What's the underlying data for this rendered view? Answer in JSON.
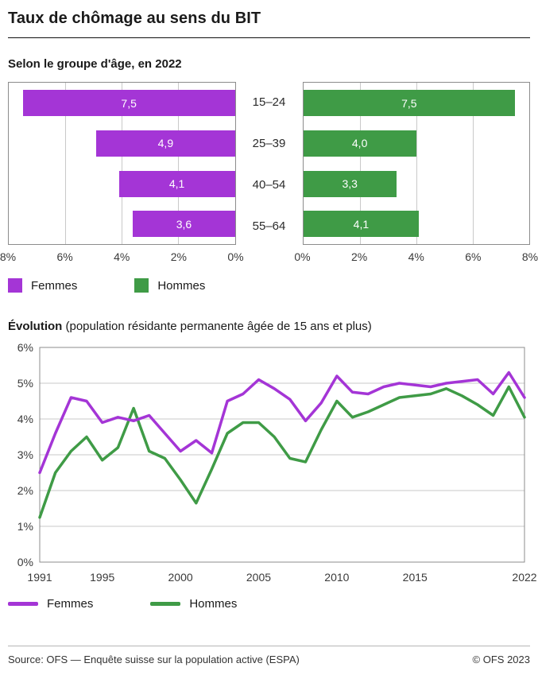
{
  "title": "Taux de chômage au sens du BIT",
  "bar_section": {
    "subtitle": "Selon le groupe d'âge, en 2022"
  },
  "evolution_section": {
    "title": "Évolution",
    "subtitle": "(population résidante permanente âgée de 15 ans et plus)"
  },
  "legend": {
    "femmes": "Femmes",
    "hommes": "Hommes"
  },
  "colors": {
    "femmes": "#a435d6",
    "hommes": "#3f9b46",
    "grid": "#c9c9c9",
    "frame": "#8c8c8c"
  },
  "footer": {
    "source": "Source: OFS — Enquête suisse sur la population active (ESPA)",
    "copyright": "© OFS 2023"
  },
  "chart_data": [
    {
      "type": "bar",
      "orientation": "horizontal",
      "title": "Selon le groupe d'âge, en 2022",
      "categories": [
        "15–24",
        "25–39",
        "40–54",
        "55–64"
      ],
      "xlim": [
        0,
        8
      ],
      "grid": true,
      "series": [
        {
          "name": "Femmes",
          "values": [
            7.5,
            4.9,
            4.1,
            3.6
          ],
          "labels": [
            "7,5",
            "4,9",
            "4,1",
            "3,6"
          ],
          "bar_direction": "right-to-left",
          "axis_ticks": [
            "8%",
            "6%",
            "4%",
            "2%",
            "0%"
          ]
        },
        {
          "name": "Hommes",
          "values": [
            7.5,
            4.0,
            3.3,
            4.1
          ],
          "labels": [
            "7,5",
            "4,0",
            "3,3",
            "4,1"
          ],
          "bar_direction": "left-to-right",
          "axis_ticks": [
            "0%",
            "2%",
            "4%",
            "6%",
            "8%"
          ]
        }
      ]
    },
    {
      "type": "line",
      "title": "Évolution (population résidante permanente âgée de 15 ans et plus)",
      "x": [
        1991,
        1992,
        1993,
        1994,
        1995,
        1996,
        1997,
        1998,
        1999,
        2000,
        2001,
        2002,
        2003,
        2004,
        2005,
        2006,
        2007,
        2008,
        2009,
        2010,
        2011,
        2012,
        2013,
        2014,
        2015,
        2016,
        2017,
        2018,
        2019,
        2020,
        2021,
        2022
      ],
      "ylim": [
        0,
        6
      ],
      "ytick_labels": [
        "0%",
        "1%",
        "2%",
        "3%",
        "4%",
        "5%",
        "6%"
      ],
      "xticks": [
        1991,
        1995,
        2000,
        2005,
        2010,
        2015,
        2022
      ],
      "xtick_labels": [
        "1991",
        "1995",
        "2000",
        "2005",
        "2010",
        "2015",
        "2022"
      ],
      "grid": true,
      "legend_position": "below",
      "series": [
        {
          "name": "Femmes",
          "values": [
            2.5,
            3.6,
            4.6,
            4.5,
            3.9,
            4.05,
            3.95,
            4.1,
            3.6,
            3.1,
            3.4,
            3.05,
            4.5,
            4.7,
            5.1,
            4.85,
            4.55,
            3.95,
            4.45,
            5.2,
            4.75,
            4.7,
            4.9,
            5.0,
            4.95,
            4.9,
            5.0,
            5.05,
            5.1,
            4.7,
            5.3,
            4.6
          ]
        },
        {
          "name": "Hommes",
          "values": [
            1.25,
            2.5,
            3.1,
            3.5,
            2.85,
            3.2,
            4.3,
            3.1,
            2.9,
            2.3,
            1.65,
            2.6,
            3.6,
            3.9,
            3.9,
            3.5,
            2.9,
            2.8,
            3.7,
            4.5,
            4.05,
            4.2,
            4.4,
            4.6,
            4.65,
            4.7,
            4.85,
            4.65,
            4.4,
            4.1,
            4.9,
            4.05
          ]
        }
      ]
    }
  ]
}
